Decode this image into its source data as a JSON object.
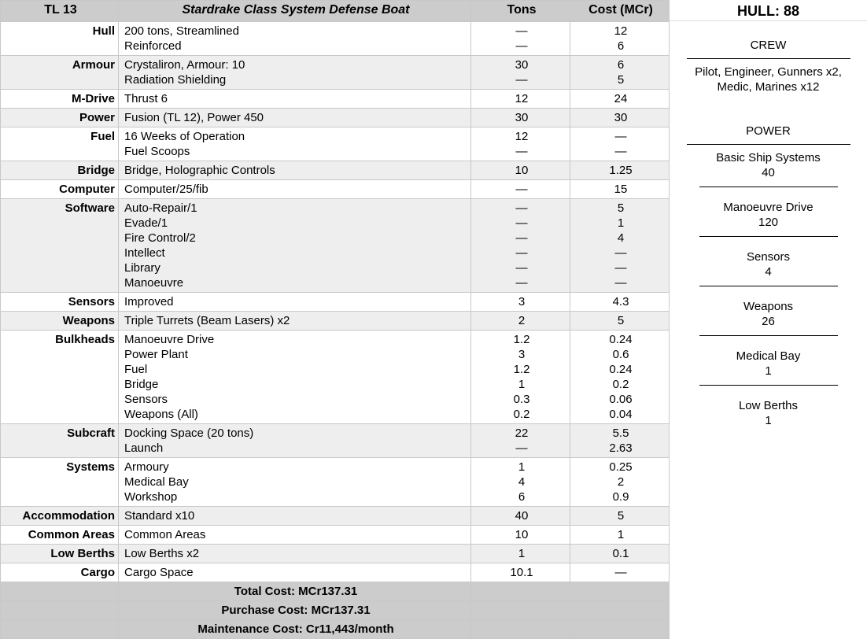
{
  "header": {
    "tl": "TL 13",
    "title": "Stardrake Class System Defense Boat",
    "tons": "Tons",
    "cost": "Cost (MCr)"
  },
  "rows": [
    {
      "label": "Hull",
      "items": [
        [
          "200 tons, Streamlined",
          "—",
          "12"
        ],
        [
          "Reinforced",
          "—",
          "6"
        ]
      ]
    },
    {
      "label": "Armour",
      "items": [
        [
          "Crystaliron, Armour: 10",
          "30",
          "6"
        ],
        [
          "Radiation Shielding",
          "—",
          "5"
        ]
      ]
    },
    {
      "label": "M-Drive",
      "items": [
        [
          "Thrust 6",
          "12",
          "24"
        ]
      ]
    },
    {
      "label": "Power",
      "items": [
        [
          "Fusion (TL 12), Power 450",
          "30",
          "30"
        ]
      ]
    },
    {
      "label": "Fuel",
      "items": [
        [
          "16 Weeks of Operation",
          "12",
          "—"
        ],
        [
          "Fuel Scoops",
          "—",
          "—"
        ]
      ]
    },
    {
      "label": "Bridge",
      "items": [
        [
          "Bridge, Holographic Controls",
          "10",
          "1.25"
        ]
      ]
    },
    {
      "label": "Computer",
      "items": [
        [
          "Computer/25/fib",
          "—",
          "15"
        ]
      ]
    },
    {
      "label": "Software",
      "items": [
        [
          "Auto-Repair/1",
          "—",
          "5"
        ],
        [
          "Evade/1",
          "—",
          "1"
        ],
        [
          "Fire Control/2",
          "—",
          "4"
        ],
        [
          "Intellect",
          "—",
          "—"
        ],
        [
          "Library",
          "—",
          "—"
        ],
        [
          "Manoeuvre",
          "—",
          "—"
        ]
      ]
    },
    {
      "label": "Sensors",
      "items": [
        [
          "Improved",
          "3",
          "4.3"
        ]
      ]
    },
    {
      "label": "Weapons",
      "items": [
        [
          "Triple Turrets (Beam Lasers) x2",
          "2",
          "5"
        ]
      ]
    },
    {
      "label": "Bulkheads",
      "items": [
        [
          "Manoeuvre Drive",
          "1.2",
          "0.24"
        ],
        [
          "Power Plant",
          "3",
          "0.6"
        ],
        [
          "Fuel",
          "1.2",
          "0.24"
        ],
        [
          "Bridge",
          "1",
          "0.2"
        ],
        [
          "Sensors",
          "0.3",
          "0.06"
        ],
        [
          "Weapons (All)",
          "0.2",
          "0.04"
        ]
      ]
    },
    {
      "label": "Subcraft",
      "items": [
        [
          "Docking Space (20 tons)",
          "22",
          "5.5"
        ],
        [
          "Launch",
          "—",
          "2.63"
        ]
      ]
    },
    {
      "label": "Systems",
      "items": [
        [
          "Armoury",
          "1",
          "0.25"
        ],
        [
          "Medical Bay",
          "4",
          "2"
        ],
        [
          "Workshop",
          "6",
          "0.9"
        ]
      ]
    },
    {
      "label": "Accommodation",
      "items": [
        [
          "Standard x10",
          "40",
          "5"
        ]
      ]
    },
    {
      "label": "Common Areas",
      "items": [
        [
          "Common Areas",
          "10",
          "1"
        ]
      ]
    },
    {
      "label": "Low Berths",
      "items": [
        [
          "Low Berths x2",
          "1",
          "0.1"
        ]
      ]
    },
    {
      "label": "Cargo",
      "items": [
        [
          "Cargo Space",
          "10.1",
          "—"
        ]
      ]
    }
  ],
  "footer": [
    "Total Cost: MCr137.31",
    "Purchase Cost: MCr137.31",
    "Maintenance Cost: Cr11,443/month"
  ],
  "side": {
    "hull": "HULL: 88",
    "crew_title": "CREW",
    "crew": [
      "Pilot, Engineer, Gunners x2,",
      "Medic, Marines x12"
    ],
    "power_title": "POWER",
    "power": [
      {
        "name": "Basic Ship Systems",
        "value": "40"
      },
      {
        "name": "Manoeuvre Drive",
        "value": "120"
      },
      {
        "name": "Sensors",
        "value": "4"
      },
      {
        "name": "Weapons",
        "value": "26"
      },
      {
        "name": "Medical Bay",
        "value": "1"
      },
      {
        "name": "Low Berths",
        "value": "1"
      }
    ]
  }
}
